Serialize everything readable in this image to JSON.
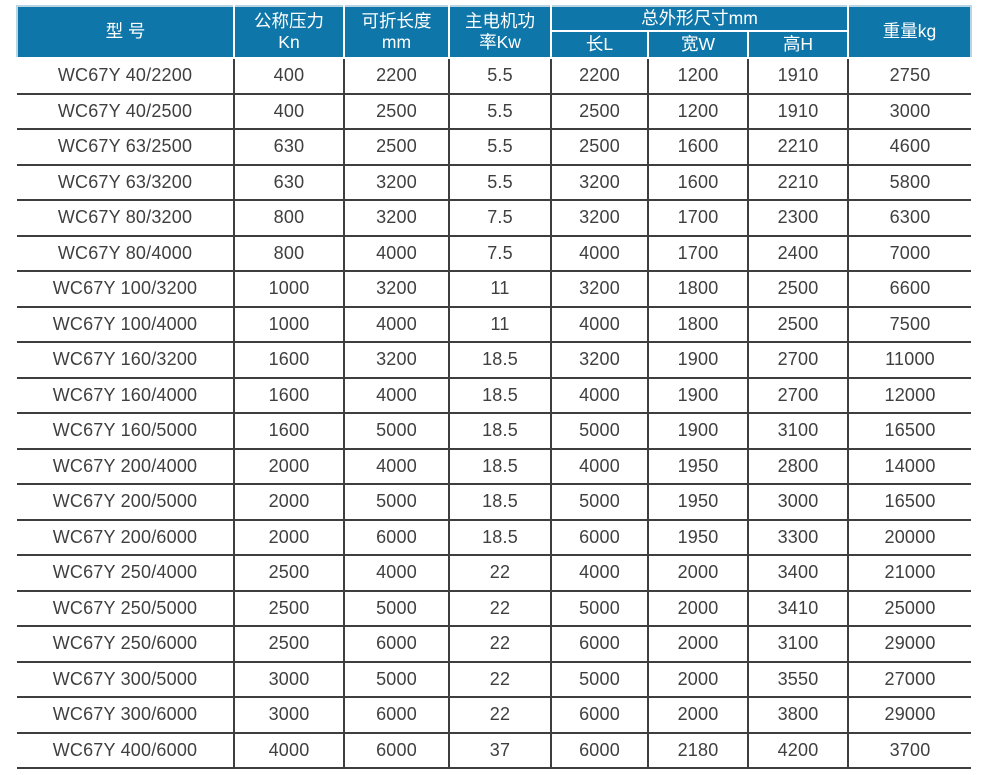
{
  "table": {
    "title_semantic": "WC67Y press brake specification table",
    "header": {
      "model": "型 号",
      "nominal_pressure": "公称压力\nKn",
      "fold_length": "可折长度\nmm",
      "motor_power": "主电机功\n率Kw",
      "overall_dimensions_group": "总外形尺寸mm",
      "dim_length": "长L",
      "dim_width": "宽W",
      "dim_height": "高H",
      "weight": "重量kg"
    },
    "rows": [
      [
        "WC67Y 40/2200",
        "400",
        "2200",
        "5.5",
        "2200",
        "1200",
        "1910",
        "2750"
      ],
      [
        "WC67Y 40/2500",
        "400",
        "2500",
        "5.5",
        "2500",
        "1200",
        "1910",
        "3000"
      ],
      [
        "WC67Y 63/2500",
        "630",
        "2500",
        "5.5",
        "2500",
        "1600",
        "2210",
        "4600"
      ],
      [
        "WC67Y 63/3200",
        "630",
        "3200",
        "5.5",
        "3200",
        "1600",
        "2210",
        "5800"
      ],
      [
        "WC67Y 80/3200",
        "800",
        "3200",
        "7.5",
        "3200",
        "1700",
        "2300",
        "6300"
      ],
      [
        "WC67Y 80/4000",
        "800",
        "4000",
        "7.5",
        "4000",
        "1700",
        "2400",
        "7000"
      ],
      [
        "WC67Y 100/3200",
        "1000",
        "3200",
        "11",
        "3200",
        "1800",
        "2500",
        "6600"
      ],
      [
        "WC67Y 100/4000",
        "1000",
        "4000",
        "11",
        "4000",
        "1800",
        "2500",
        "7500"
      ],
      [
        "WC67Y 160/3200",
        "1600",
        "3200",
        "18.5",
        "3200",
        "1900",
        "2700",
        "11000"
      ],
      [
        "WC67Y 160/4000",
        "1600",
        "4000",
        "18.5",
        "4000",
        "1900",
        "2700",
        "12000"
      ],
      [
        "WC67Y 160/5000",
        "1600",
        "5000",
        "18.5",
        "5000",
        "1900",
        "3100",
        "16500"
      ],
      [
        "WC67Y 200/4000",
        "2000",
        "4000",
        "18.5",
        "4000",
        "1950",
        "2800",
        "14000"
      ],
      [
        "WC67Y 200/5000",
        "2000",
        "5000",
        "18.5",
        "5000",
        "1950",
        "3000",
        "16500"
      ],
      [
        "WC67Y 200/6000",
        "2000",
        "6000",
        "18.5",
        "6000",
        "1950",
        "3300",
        "20000"
      ],
      [
        "WC67Y 250/4000",
        "2500",
        "4000",
        "22",
        "4000",
        "2000",
        "3400",
        "21000"
      ],
      [
        "WC67Y 250/5000",
        "2500",
        "5000",
        "22",
        "5000",
        "2000",
        "3410",
        "25000"
      ],
      [
        "WC67Y 250/6000",
        "2500",
        "6000",
        "22",
        "6000",
        "2000",
        "3100",
        "29000"
      ],
      [
        "WC67Y 300/5000",
        "3000",
        "5000",
        "22",
        "5000",
        "2000",
        "3550",
        "27000"
      ],
      [
        "WC67Y 300/6000",
        "3000",
        "6000",
        "22",
        "6000",
        "2000",
        "3800",
        "29000"
      ],
      [
        "WC67Y 400/6000",
        "4000",
        "6000",
        "37",
        "6000",
        "2180",
        "4200",
        "3700"
      ]
    ]
  },
  "colors": {
    "header_bg": "#0e76a8",
    "header_text": "#ffffff",
    "header_edge": "#b9d5e4",
    "grid_line": "#3e3e3e",
    "body_text": "#3f3f3f",
    "page_bg": "#ffffff"
  }
}
